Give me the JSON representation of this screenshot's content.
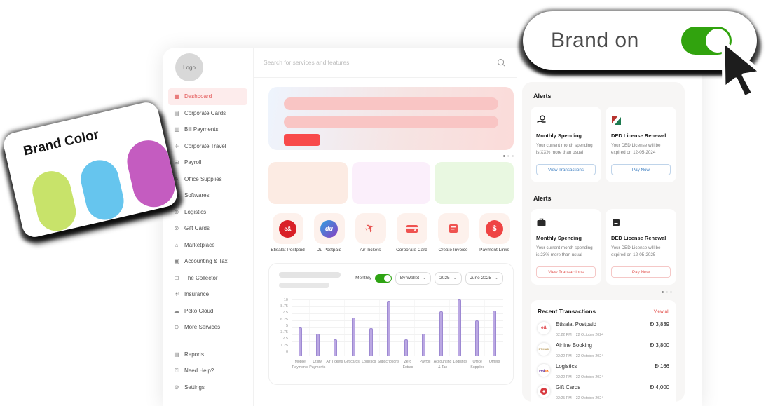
{
  "brand_pill": {
    "label": "Brand on",
    "toggle_state": "on",
    "toggle_color": "#31a30e"
  },
  "brand_card": {
    "title": "Brand Color",
    "swatches": [
      "#c8e36a",
      "#66c5ee",
      "#c45cc0"
    ]
  },
  "sidebar": {
    "logo_label": "Logo",
    "items": [
      {
        "label": "Dashboard",
        "icon": "dashboard-icon",
        "active": true
      },
      {
        "label": "Corporate Cards",
        "icon": "corporate-cards-icon"
      },
      {
        "label": "Bill Payments",
        "icon": "bill-payments-icon"
      },
      {
        "label": "Corporate Travel",
        "icon": "corporate-travel-icon"
      },
      {
        "label": "Payroll",
        "icon": "payroll-icon"
      },
      {
        "label": "Office Supplies",
        "icon": "office-supplies-icon"
      },
      {
        "label": "Softwares",
        "icon": "softwares-icon"
      },
      {
        "label": "Logistics",
        "icon": "logistics-icon"
      },
      {
        "label": "Gift Cards",
        "icon": "gift-cards-icon"
      },
      {
        "label": "Marketplace",
        "icon": "marketplace-icon"
      },
      {
        "label": "Accounting & Tax",
        "icon": "accounting-tax-icon"
      },
      {
        "label": "The Collector",
        "icon": "collector-icon"
      },
      {
        "label": "Insurance",
        "icon": "insurance-icon"
      },
      {
        "label": "Peko Cloud",
        "icon": "cloud-icon"
      },
      {
        "label": "More Services",
        "icon": "more-services-icon"
      }
    ],
    "footer_items": [
      {
        "label": "Reports",
        "icon": "reports-icon"
      },
      {
        "label": "Need Help?",
        "icon": "help-icon"
      },
      {
        "label": "Settings",
        "icon": "settings-icon"
      }
    ]
  },
  "search": {
    "placeholder": "Search for services and features"
  },
  "banner": {
    "button_color": "#f84a4b",
    "row_color": "#f9c5c4"
  },
  "carousel_dots": {
    "count": 3,
    "active_index": 0
  },
  "promo_cards": [
    {
      "color": "#fcebe3"
    },
    {
      "color": "#fbeffb"
    },
    {
      "color": "#e9f8e1"
    }
  ],
  "quick_actions": [
    {
      "label": "Etisalat Postpaid",
      "icon": "etisalat-logo-icon"
    },
    {
      "label": "Du Postpaid",
      "icon": "du-logo-icon"
    },
    {
      "label": "Air Tickets",
      "icon": "airplane-icon"
    },
    {
      "label": "Corporate Card",
      "icon": "card-icon"
    },
    {
      "label": "Create Invoice",
      "icon": "invoice-icon"
    },
    {
      "label": "Payment Links",
      "icon": "dollar-icon"
    }
  ],
  "chart_card": {
    "toggle_label": "Monthly",
    "toggle_state": "on",
    "filters": [
      {
        "value": "By Wallet"
      },
      {
        "value": "2025"
      },
      {
        "value": "June 2025"
      }
    ]
  },
  "chart_data": {
    "type": "bar",
    "categories": [
      "Mobile Payments",
      "Utility Payments",
      "Air Tickets",
      "Gift cards",
      "Logistics",
      "Subscriptions",
      "Zero Extras",
      "Payroll",
      "Accounting & Tax",
      "Logistics",
      "Office Supplies",
      "Others"
    ],
    "values": [
      5,
      3.9,
      2.9,
      6.7,
      4.9,
      9.7,
      2.8,
      3.8,
      7.9,
      10,
      6.2,
      8
    ],
    "title": "",
    "xlabel": "",
    "ylabel": "",
    "ylim": [
      0,
      10
    ],
    "yticks": [
      10,
      8.75,
      7.5,
      6.25,
      5,
      3.75,
      2.5,
      1.25,
      0
    ],
    "grid": true,
    "legend": false,
    "bar_color": "#bba8e3"
  },
  "alerts_sections": [
    {
      "heading": "Alerts",
      "accent": "#3e7fc1",
      "cards": [
        {
          "icon": "hand-coin-icon",
          "title": "Monthly Spending",
          "body": "Your current month spending is XX% more than usual",
          "button": "View Transactions"
        },
        {
          "icon": "ded-logo-icon",
          "title": "DED License Renewal",
          "body": "Your DED License  will be expired on 12-05-2024",
          "button": "Pay Now"
        }
      ]
    },
    {
      "heading": "Alerts",
      "accent": "#e25a56",
      "cards": [
        {
          "icon": "briefcase-icon",
          "title": "Monthly Spending",
          "body": "Your current month spending is 23% more than usual",
          "button": "View Transactions"
        },
        {
          "icon": "bag-icon",
          "title": "DED License Renewal",
          "body": "Your DED License  will be expired on 12-05-2025",
          "button": "Pay Now"
        }
      ]
    }
  ],
  "recent_transactions": {
    "heading": "Recent Transactions",
    "view_all": "View all",
    "currency": "Ɖ",
    "rows": [
      {
        "name": "Etisalat Postpaid",
        "logo": "etisalat-logo-icon",
        "time": "02:22 PM",
        "date": "22 October 2024",
        "amount": "3,839"
      },
      {
        "name": "Airline Booking",
        "logo": "etihad-logo-icon",
        "time": "02:22 PM",
        "date": "22 October 2024",
        "amount": "3,800"
      },
      {
        "name": "Logistics",
        "logo": "fedex-logo-icon",
        "time": "02:22 PM",
        "date": "22 October 2024",
        "amount": "166"
      },
      {
        "name": "Gift Cards",
        "logo": "gift-logo-icon",
        "time": "02:25 PM",
        "date": "22 October 2024",
        "amount": "4,000"
      }
    ]
  }
}
